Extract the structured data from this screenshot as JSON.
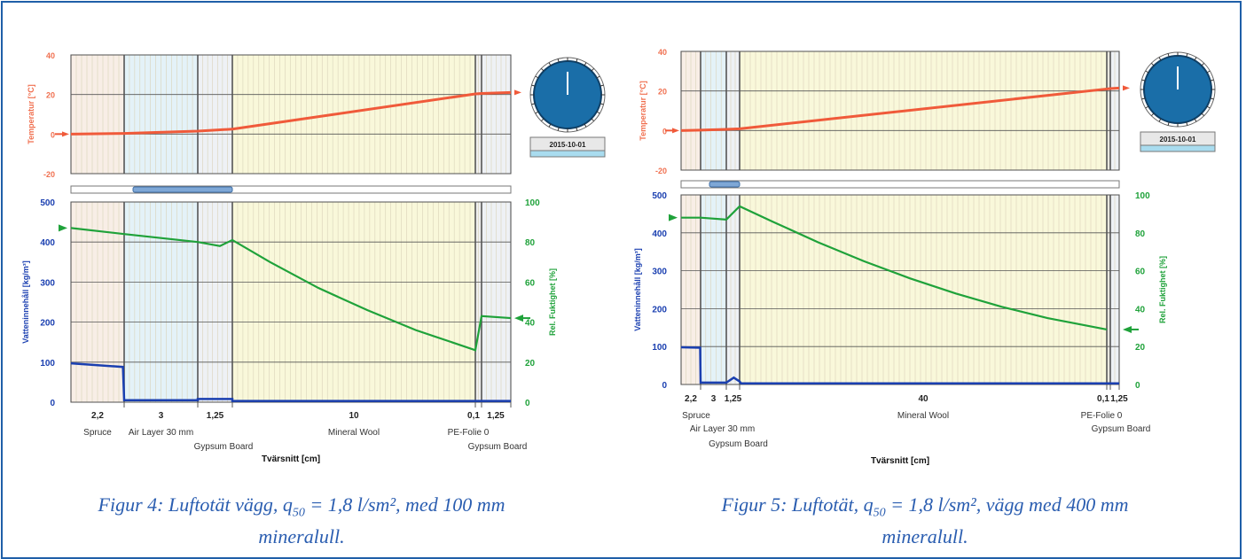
{
  "figures": [
    {
      "id": "left",
      "date_label": "2015-10-01",
      "caption": {
        "pre": "Figur 4: Luftotät vägg, q",
        "sub": "50",
        "post": " = 1,8 l/sm², med 100 mm",
        "line2": "mineralull."
      },
      "chart_data": {
        "type": "line",
        "xlabel": "Tvärsnitt [cm]",
        "layers": [
          {
            "thickness_label": "2,2",
            "name": "Spruce",
            "cm": 2.2,
            "color": "#f8eee6",
            "name_row": 0
          },
          {
            "thickness_label": "3",
            "name": "Air Layer 30 mm",
            "cm": 3,
            "color": "#e4f2f8",
            "name_row": 0
          },
          {
            "thickness_label": "1,25",
            "name": "Gypsum Board",
            "cm": 1.25,
            "color": "#eef1f5",
            "name_row": 1
          },
          {
            "thickness_label": "10",
            "name": "Mineral Wool",
            "cm": 10,
            "color": "#f9f8da",
            "name_row": 0
          },
          {
            "thickness_label": "0,1",
            "name": "PE-Folie 0",
            "cm": 0.1,
            "color": "#eeeeee",
            "name_row": 0
          },
          {
            "thickness_label": "1,25",
            "name": "Gypsum Board",
            "cm": 1.25,
            "color": "#eef1f5",
            "name_row": 1
          }
        ],
        "temperature": {
          "ylabel": "Temperatur [°C]",
          "ylim": [
            -20,
            40
          ],
          "ticks": [
            "40",
            "20",
            "0",
            "-20"
          ],
          "x": [
            0,
            2.2,
            5.2,
            6.45,
            16.45,
            16.55,
            17.8
          ],
          "y": [
            0,
            0.3,
            1.5,
            2.5,
            20.3,
            20.5,
            21
          ]
        },
        "water_content": {
          "ylabel": "Vatteninnehåll [kg/m³]",
          "ylim": [
            0,
            500
          ],
          "ticks": [
            "500",
            "400",
            "300",
            "200",
            "100",
            "0"
          ],
          "x": [
            0,
            2.15,
            2.2,
            5.2,
            5.2,
            6.45,
            6.45,
            17.8
          ],
          "y": [
            97,
            88,
            5,
            5,
            8,
            8,
            3,
            3
          ]
        },
        "relative_humidity": {
          "ylabel": "Rel. Fuktighet [%]",
          "ylim": [
            0,
            100
          ],
          "ticks": [
            "100",
            "80",
            "60",
            "40",
            "20",
            "0"
          ],
          "x": [
            0,
            2.2,
            5.2,
            6.0,
            6.45,
            8,
            10,
            12,
            14,
            16.45,
            16.55,
            17.8
          ],
          "y": [
            87,
            84,
            80,
            78,
            81,
            70,
            57,
            46,
            36,
            26,
            43,
            42
          ]
        }
      }
    },
    {
      "id": "right",
      "date_label": "2015-10-01",
      "caption": {
        "pre": "Figur 5: Luftotät, q",
        "sub": "50",
        "post": " = 1,8 l/sm², vägg med 400 mm",
        "line2": "mineralull."
      },
      "chart_data": {
        "type": "line",
        "xlabel": "Tvärsnitt [cm]",
        "layers": [
          {
            "thickness_label": "2,2",
            "name": "Spruce",
            "cm": 2.2,
            "color": "#f8eee6",
            "name_row": 0
          },
          {
            "thickness_label": "3",
            "name": "Air Layer 30 mm",
            "cm": 3,
            "color": "#e4f2f8",
            "name_row": 1
          },
          {
            "thickness_label": "1,25",
            "name": "Gypsum Board",
            "cm": 1.25,
            "color": "#eef1f5",
            "name_row": 2
          },
          {
            "thickness_label": "40",
            "name": "Mineral Wool",
            "cm": 40,
            "color": "#f9f8da",
            "name_row": 0
          },
          {
            "thickness_label": "0,1",
            "name": "PE-Folie 0",
            "cm": 0.1,
            "color": "#eeeeee",
            "name_row": 0
          },
          {
            "thickness_label": "1,25",
            "name": "Gypsum Board",
            "cm": 1.25,
            "color": "#eef1f5",
            "name_row": 1
          }
        ],
        "temperature": {
          "ylabel": "Temperatur [°C]",
          "ylim": [
            -20,
            40
          ],
          "ticks": [
            "40",
            "20",
            "0",
            "-20"
          ],
          "x": [
            0,
            2.2,
            5.2,
            6.45,
            46.45,
            46.55,
            47.8
          ],
          "y": [
            0,
            0.2,
            0.6,
            0.9,
            21,
            21.2,
            21.5
          ]
        },
        "water_content": {
          "ylabel": "Vatteninnehåll [kg/m³]",
          "ylim": [
            0,
            500
          ],
          "ticks": [
            "500",
            "400",
            "300",
            "200",
            "100",
            "0"
          ],
          "x": [
            0,
            2.15,
            2.2,
            5.2,
            5.9,
            6.45,
            6.6,
            47.8
          ],
          "y": [
            98,
            97,
            5,
            5,
            18,
            8,
            3,
            3
          ]
        },
        "relative_humidity": {
          "ylabel": "Rel. Fuktighet [%]",
          "ylim": [
            0,
            100
          ],
          "ticks": [
            "100",
            "80",
            "60",
            "40",
            "20",
            "0"
          ],
          "x": [
            0,
            2.2,
            5.2,
            6.45,
            10,
            15,
            20,
            25,
            30,
            35,
            40,
            46.45
          ],
          "y": [
            88,
            88,
            87,
            94,
            86,
            75,
            65,
            56,
            48,
            41,
            35,
            29
          ]
        }
      }
    }
  ],
  "colors": {
    "frame": "#1f5fa8",
    "temperature": "#f05a3a",
    "temperature_axis": "#f07050",
    "water": "#1a3fb0",
    "humidity": "#1fa23a",
    "gauge": "#1a6ea8",
    "caption": "#2a5db0"
  }
}
